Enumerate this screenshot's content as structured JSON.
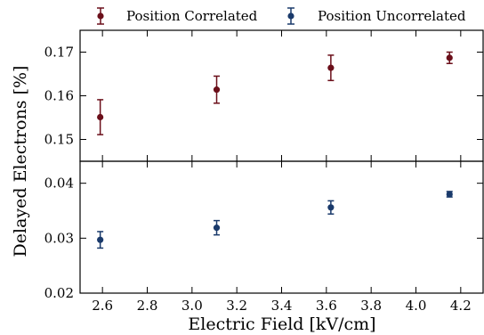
{
  "chart_data": {
    "type": "scatter",
    "xlabel": "Electric Field [kV/cm]",
    "ylabel": "Delayed Electrons [%]",
    "xlim": [
      2.5,
      4.3
    ],
    "x_ticks": [
      "2.6",
      "2.8",
      "3.0",
      "3.2",
      "3.4",
      "3.6",
      "3.8",
      "4.0",
      "4.2"
    ],
    "x_tick_values": [
      2.6,
      2.8,
      3.0,
      3.2,
      3.4,
      3.6,
      3.8,
      4.0,
      4.2
    ],
    "legend_placement": "top, above plots",
    "colors": {
      "correlated": "#6b0f1a",
      "uncorrelated": "#1a3a6b"
    },
    "panels": [
      {
        "name": "top",
        "ylim": [
          0.145,
          0.175
        ],
        "y_ticks": [
          "0.15",
          "0.16",
          "0.17"
        ],
        "y_tick_values": [
          0.15,
          0.16,
          0.17
        ],
        "series": [
          {
            "name": "Position Correlated",
            "color": "#6b0f1a",
            "x": [
              2.59,
              3.11,
              3.62,
              4.15
            ],
            "y": [
              0.1551,
              0.1614,
              0.1664,
              0.1687
            ],
            "yerr": [
              0.004,
              0.0031,
              0.0029,
              0.0013
            ]
          }
        ]
      },
      {
        "name": "bottom",
        "ylim": [
          0.02,
          0.044
        ],
        "y_ticks": [
          "0.02",
          "0.03",
          "0.04"
        ],
        "y_tick_values": [
          0.02,
          0.03,
          0.04
        ],
        "series": [
          {
            "name": "Position Uncorrelated",
            "color": "#1a3a6b",
            "x": [
              2.59,
              3.11,
              3.62,
              4.15
            ],
            "y": [
              0.0297,
              0.0319,
              0.0356,
              0.038
            ],
            "yerr": [
              0.0015,
              0.0013,
              0.0012,
              0.0005
            ]
          }
        ]
      }
    ]
  }
}
